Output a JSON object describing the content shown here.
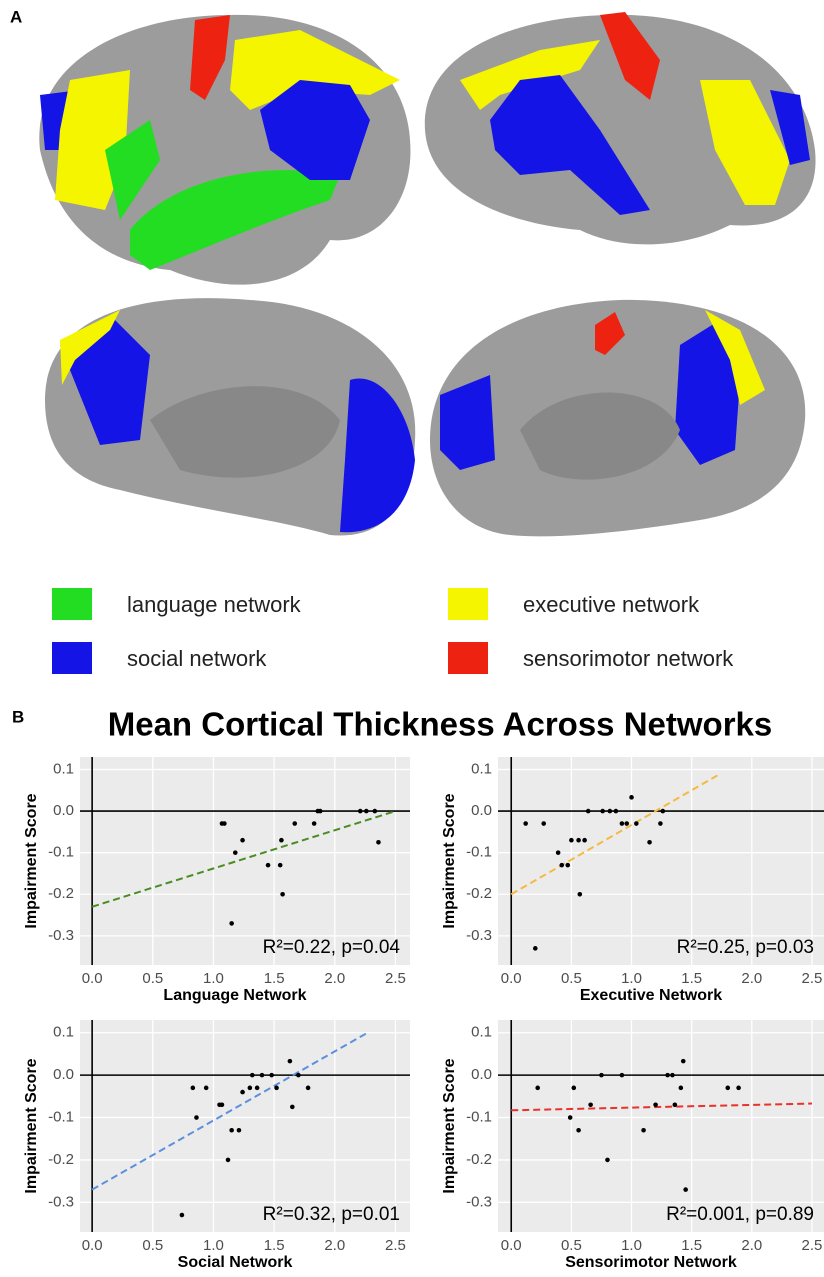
{
  "panel_labels": [
    "A",
    "B"
  ],
  "legend": [
    {
      "label": "language network",
      "color": "#22dd22"
    },
    {
      "label": "social network",
      "color": "#1414e6"
    },
    {
      "label": "executive network",
      "color": "#f5f500"
    },
    {
      "label": "sensorimotor network",
      "color": "#ee2211"
    }
  ],
  "title": "Mean Cortical Thickness Across Networks",
  "chart_data": [
    {
      "type": "scatter",
      "xlabel": "Language Network",
      "ylabel": "Impairment Score",
      "annotation": "R²=0.22, p=0.04",
      "xlim": [
        -0.1,
        2.62
      ],
      "ylim": [
        -0.37,
        0.13
      ],
      "xticks": [
        {
          "value": 0,
          "label": "0.0"
        },
        0.5,
        {
          "value": 1,
          "label": "1.0"
        },
        1.5,
        {
          "value": 2,
          "label": "2.0"
        },
        2.5
      ],
      "yticks": [
        0.1,
        {
          "value": 0,
          "label": "0.0"
        },
        -0.1,
        -0.2,
        -0.3
      ],
      "x": [
        1.07,
        1.09,
        1.18,
        1.24,
        1.45,
        1.55,
        1.56,
        1.57,
        1.67,
        1.83,
        1.86,
        1.88,
        2.21,
        2.26,
        2.33,
        2.36,
        1.15
      ],
      "y": [
        -0.03,
        -0.03,
        -0.1,
        -0.07,
        -0.13,
        -0.13,
        -0.07,
        -0.2,
        -0.03,
        -0.03,
        0,
        0,
        0,
        0,
        0,
        -0.075,
        -0.27
      ],
      "trend": {
        "x": [
          0,
          2.5
        ],
        "y": [
          -0.23,
          0
        ],
        "color": "#4a8c22"
      }
    },
    {
      "type": "scatter",
      "xlabel": "Executive Network",
      "ylabel": "Impairment Score",
      "annotation": "R²=0.25, p=0.03",
      "xlim": [
        -0.11,
        2.6
      ],
      "ylim": [
        -0.37,
        0.13
      ],
      "xticks": [
        {
          "value": 0,
          "label": "0.0"
        },
        0.5,
        {
          "value": 1,
          "label": "1.0"
        },
        1.5,
        {
          "value": 2,
          "label": "2.0"
        },
        2.5
      ],
      "yticks": [
        0.1,
        {
          "value": 0,
          "label": "0.0"
        },
        -0.1,
        -0.2,
        -0.3
      ],
      "x": [
        0.12,
        0.27,
        0.2,
        0.39,
        0.42,
        0.47,
        0.5,
        0.56,
        0.57,
        0.61,
        0.64,
        0.76,
        0.82,
        0.87,
        0.92,
        0.96,
        1.0,
        1.04,
        1.15,
        1.24,
        1.26
      ],
      "y": [
        -0.03,
        -0.03,
        -0.33,
        -0.1,
        -0.13,
        -0.13,
        -0.07,
        -0.07,
        -0.2,
        -0.07,
        0,
        0,
        0,
        0,
        -0.03,
        -0.03,
        0.033,
        -0.03,
        -0.075,
        -0.03,
        0
      ],
      "trend": {
        "x": [
          0,
          1.74
        ],
        "y": [
          -0.2,
          0.09
        ],
        "color": "#f5b942"
      }
    },
    {
      "type": "scatter",
      "xlabel": "Social Network",
      "ylabel": "Impairment Score",
      "annotation": "R²=0.32, p=0.01",
      "xlim": [
        -0.1,
        2.62
      ],
      "ylim": [
        -0.37,
        0.13
      ],
      "xticks": [
        {
          "value": 0,
          "label": "0.0"
        },
        0.5,
        {
          "value": 1,
          "label": "1.0"
        },
        1.5,
        {
          "value": 2,
          "label": "2.0"
        },
        2.5
      ],
      "yticks": [
        0.1,
        {
          "value": 0,
          "label": "0.0"
        },
        -0.1,
        -0.2,
        -0.3
      ],
      "x": [
        0.74,
        0.83,
        0.86,
        0.94,
        1.05,
        1.07,
        1.12,
        1.15,
        1.21,
        1.24,
        1.3,
        1.32,
        1.36,
        1.4,
        1.48,
        1.52,
        1.63,
        1.65,
        1.7,
        1.78
      ],
      "y": [
        -0.33,
        -0.03,
        -0.1,
        -0.03,
        -0.07,
        -0.07,
        -0.2,
        -0.13,
        -0.13,
        -0.04,
        -0.03,
        0,
        -0.03,
        0,
        0,
        -0.03,
        0.033,
        -0.075,
        0,
        -0.03
      ],
      "trend": {
        "x": [
          0,
          2.27
        ],
        "y": [
          -0.27,
          0.1
        ],
        "color": "#5b8fe0"
      }
    },
    {
      "type": "scatter",
      "xlabel": "Sensorimotor Network",
      "ylabel": "Impairment Score",
      "annotation": "R²=0.001, p=0.89",
      "xlim": [
        -0.11,
        2.6
      ],
      "ylim": [
        -0.37,
        0.13
      ],
      "xticks": [
        {
          "value": 0,
          "label": "0.0"
        },
        0.5,
        {
          "value": 1,
          "label": "1.0"
        },
        1.5,
        {
          "value": 2,
          "label": "2.0"
        },
        2.5
      ],
      "yticks": [
        0.1,
        {
          "value": 0,
          "label": "0.0"
        },
        -0.1,
        -0.2,
        -0.3
      ],
      "x": [
        0.22,
        0.49,
        0.52,
        0.56,
        0.66,
        0.75,
        0.8,
        0.92,
        1.1,
        1.2,
        1.3,
        1.34,
        1.36,
        1.41,
        1.43,
        1.45,
        1.8,
        1.89
      ],
      "y": [
        -0.03,
        -0.1,
        -0.03,
        -0.13,
        -0.07,
        0,
        -0.2,
        0,
        -0.13,
        -0.07,
        0,
        0,
        -0.07,
        -0.03,
        0.033,
        -0.27,
        -0.03,
        -0.03
      ],
      "trend": {
        "x": [
          0,
          2.5
        ],
        "y": [
          -0.083,
          -0.067
        ],
        "color": "#e8322a"
      }
    }
  ]
}
